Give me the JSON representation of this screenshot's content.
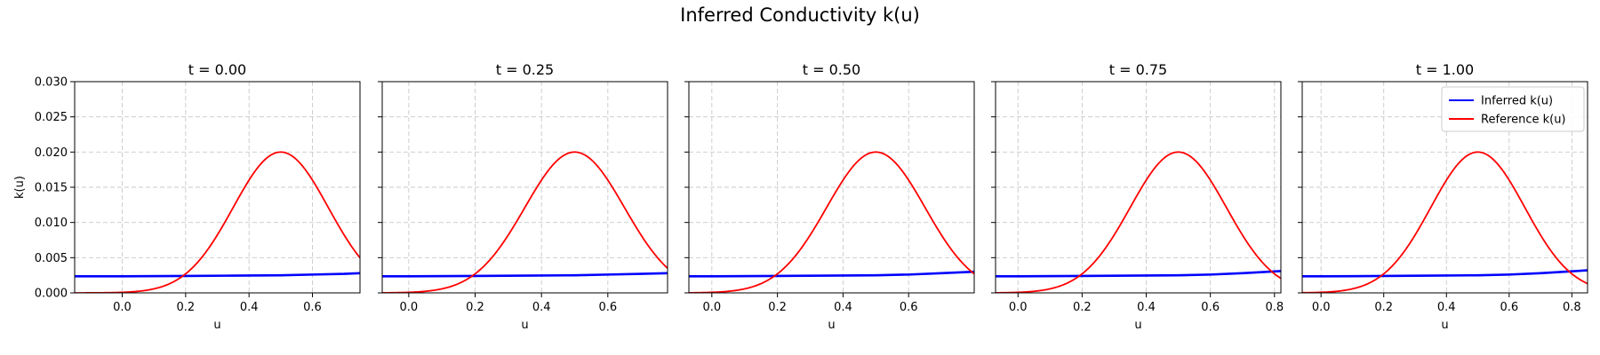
{
  "figure": {
    "title": "Inferred Conductivity k(u)"
  },
  "chart_data": [
    {
      "type": "line",
      "title": "t = 0.00",
      "xlabel": "u",
      "ylabel": "k(u)",
      "xlim": [
        -0.15,
        0.75
      ],
      "ylim": [
        0,
        0.03
      ],
      "xticks": [
        "0.0",
        "0.2",
        "0.4",
        "0.6"
      ],
      "yticks": [
        "0.000",
        "0.005",
        "0.010",
        "0.015",
        "0.020",
        "0.025",
        "0.030"
      ],
      "grid": true,
      "series": [
        {
          "name": "Inferred k(u)",
          "color": "#0000ff",
          "x": [
            -0.15,
            0.0,
            0.2,
            0.35,
            0.5,
            0.6,
            0.7,
            0.75
          ],
          "y": [
            0.00235,
            0.00235,
            0.0024,
            0.00245,
            0.0025,
            0.0026,
            0.0027,
            0.0028
          ]
        },
        {
          "name": "Reference k(u)",
          "color": "#ff0000",
          "kind": "gaussian",
          "amplitude": 0.02,
          "mean": 0.5,
          "sigma": 0.15,
          "x_range": [
            -0.15,
            0.75
          ]
        }
      ]
    },
    {
      "type": "line",
      "title": "t = 0.25",
      "xlabel": "u",
      "ylabel": "",
      "xlim": [
        -0.08,
        0.78
      ],
      "ylim": [
        0,
        0.03
      ],
      "xticks": [
        "0.0",
        "0.2",
        "0.4",
        "0.6"
      ],
      "yticks": [
        "",
        "",
        "",
        "",
        "",
        "",
        ""
      ],
      "grid": true,
      "series": [
        {
          "name": "Inferred k(u)",
          "color": "#0000ff",
          "x": [
            -0.08,
            0.0,
            0.2,
            0.35,
            0.5,
            0.6,
            0.7,
            0.78
          ],
          "y": [
            0.00235,
            0.00235,
            0.0024,
            0.00245,
            0.0025,
            0.0026,
            0.0027,
            0.0028
          ]
        },
        {
          "name": "Reference k(u)",
          "color": "#ff0000",
          "kind": "gaussian",
          "amplitude": 0.02,
          "mean": 0.5,
          "sigma": 0.15,
          "x_range": [
            -0.08,
            0.78
          ]
        }
      ]
    },
    {
      "type": "line",
      "title": "t = 0.50",
      "xlabel": "u",
      "ylabel": "",
      "xlim": [
        -0.07,
        0.8
      ],
      "ylim": [
        0,
        0.03
      ],
      "xticks": [
        "0.0",
        "0.2",
        "0.4",
        "0.6"
      ],
      "yticks": [
        "",
        "",
        "",
        "",
        "",
        "",
        ""
      ],
      "grid": true,
      "series": [
        {
          "name": "Inferred k(u)",
          "color": "#0000ff",
          "x": [
            -0.07,
            0.0,
            0.2,
            0.35,
            0.5,
            0.6,
            0.7,
            0.8
          ],
          "y": [
            0.00235,
            0.00235,
            0.0024,
            0.00245,
            0.0025,
            0.0026,
            0.0028,
            0.003
          ]
        },
        {
          "name": "Reference k(u)",
          "color": "#ff0000",
          "kind": "gaussian",
          "amplitude": 0.02,
          "mean": 0.5,
          "sigma": 0.15,
          "x_range": [
            -0.07,
            0.8
          ]
        }
      ]
    },
    {
      "type": "line",
      "title": "t = 0.75",
      "xlabel": "u",
      "ylabel": "",
      "xlim": [
        -0.07,
        0.82
      ],
      "ylim": [
        0,
        0.03
      ],
      "xticks": [
        "0.0",
        "0.2",
        "0.4",
        "0.6",
        "0.8"
      ],
      "yticks": [
        "",
        "",
        "",
        "",
        "",
        "",
        ""
      ],
      "grid": true,
      "series": [
        {
          "name": "Inferred k(u)",
          "color": "#0000ff",
          "x": [
            -0.07,
            0.0,
            0.2,
            0.35,
            0.5,
            0.6,
            0.7,
            0.82
          ],
          "y": [
            0.00235,
            0.00235,
            0.0024,
            0.00245,
            0.0025,
            0.0026,
            0.0028,
            0.0031
          ]
        },
        {
          "name": "Reference k(u)",
          "color": "#ff0000",
          "kind": "gaussian",
          "amplitude": 0.02,
          "mean": 0.5,
          "sigma": 0.15,
          "x_range": [
            -0.07,
            0.82
          ]
        }
      ]
    },
    {
      "type": "line",
      "title": "t = 1.00",
      "xlabel": "u",
      "ylabel": "",
      "xlim": [
        -0.06,
        0.85
      ],
      "ylim": [
        0,
        0.03
      ],
      "xticks": [
        "0.0",
        "0.2",
        "0.4",
        "0.6",
        "0.8"
      ],
      "yticks": [
        "",
        "",
        "",
        "",
        "",
        "",
        ""
      ],
      "grid": true,
      "legend": "top-right",
      "series": [
        {
          "name": "Inferred k(u)",
          "color": "#0000ff",
          "x": [
            -0.06,
            0.0,
            0.2,
            0.35,
            0.5,
            0.6,
            0.7,
            0.85
          ],
          "y": [
            0.00235,
            0.00235,
            0.0024,
            0.00245,
            0.0025,
            0.0026,
            0.0028,
            0.0032
          ]
        },
        {
          "name": "Reference k(u)",
          "color": "#ff0000",
          "kind": "gaussian",
          "amplitude": 0.02,
          "mean": 0.5,
          "sigma": 0.15,
          "x_range": [
            -0.06,
            0.85
          ]
        }
      ]
    }
  ]
}
